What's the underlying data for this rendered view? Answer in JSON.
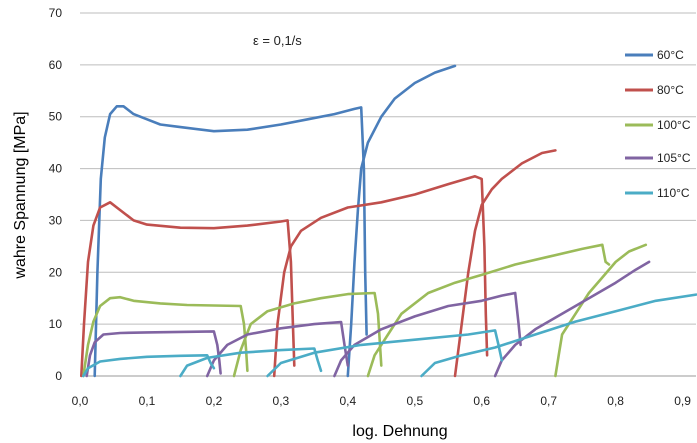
{
  "chart_data": {
    "type": "line",
    "annotation": "ε = 0,1/s",
    "xlabel": "log. Dehnung",
    "ylabel": "wahre Spannung [MPa]",
    "xlim": [
      0,
      0.92
    ],
    "ylim": [
      0,
      70
    ],
    "x_ticks": [
      "0,0",
      "0,1",
      "0,2",
      "0,3",
      "0,4",
      "0,5",
      "0,6",
      "0,7",
      "0,8",
      "0,9"
    ],
    "y_ticks": [
      "0",
      "10",
      "20",
      "30",
      "40",
      "50",
      "60",
      "70"
    ],
    "grid": "horizontal",
    "legend_position": "right",
    "series": [
      {
        "name": "60°C",
        "color": "#4a7ebb",
        "segments": [
          [
            [
              0.022,
              0
            ],
            [
              0.026,
              20
            ],
            [
              0.031,
              38
            ],
            [
              0.037,
              46
            ],
            [
              0.045,
              50.5
            ],
            [
              0.055,
              52
            ],
            [
              0.065,
              52
            ],
            [
              0.08,
              50.5
            ],
            [
              0.1,
              49.5
            ],
            [
              0.12,
              48.5
            ],
            [
              0.15,
              48
            ],
            [
              0.2,
              47.2
            ],
            [
              0.25,
              47.5
            ],
            [
              0.3,
              48.5
            ],
            [
              0.34,
              49.5
            ],
            [
              0.38,
              50.5
            ],
            [
              0.41,
              51.5
            ],
            [
              0.42,
              51.8
            ],
            [
              0.424,
              40
            ],
            [
              0.426,
              20
            ],
            [
              0.428,
              8
            ]
          ],
          [
            [
              0.4,
              0
            ],
            [
              0.405,
              10
            ],
            [
              0.41,
              22
            ],
            [
              0.415,
              32
            ],
            [
              0.42,
              40
            ],
            [
              0.43,
              45
            ],
            [
              0.45,
              50
            ],
            [
              0.47,
              53.5
            ],
            [
              0.5,
              56.5
            ],
            [
              0.53,
              58.5
            ],
            [
              0.56,
              59.8
            ]
          ]
        ]
      },
      {
        "name": "80°C",
        "color": "#c0504d",
        "segments": [
          [
            [
              0.002,
              0
            ],
            [
              0.006,
              10
            ],
            [
              0.012,
              22
            ],
            [
              0.02,
              29
            ],
            [
              0.03,
              32.5
            ],
            [
              0.045,
              33.5
            ],
            [
              0.06,
              32
            ],
            [
              0.08,
              30
            ],
            [
              0.1,
              29.2
            ],
            [
              0.15,
              28.6
            ],
            [
              0.2,
              28.5
            ],
            [
              0.25,
              29
            ],
            [
              0.3,
              29.8
            ],
            [
              0.31,
              30
            ],
            [
              0.315,
              22
            ],
            [
              0.318,
              10
            ],
            [
              0.32,
              2
            ]
          ],
          [
            [
              0.29,
              0
            ],
            [
              0.295,
              10
            ],
            [
              0.305,
              20
            ],
            [
              0.315,
              25
            ],
            [
              0.33,
              28
            ],
            [
              0.36,
              30.5
            ],
            [
              0.4,
              32.5
            ],
            [
              0.45,
              33.5
            ],
            [
              0.5,
              35
            ],
            [
              0.55,
              37
            ],
            [
              0.59,
              38.5
            ],
            [
              0.6,
              38
            ],
            [
              0.604,
              25
            ],
            [
              0.606,
              12
            ],
            [
              0.608,
              4
            ]
          ],
          [
            [
              0.56,
              0
            ],
            [
              0.57,
              10
            ],
            [
              0.58,
              20
            ],
            [
              0.59,
              28
            ],
            [
              0.6,
              33
            ],
            [
              0.615,
              36
            ],
            [
              0.63,
              38
            ],
            [
              0.66,
              41
            ],
            [
              0.69,
              43
            ],
            [
              0.71,
              43.5
            ]
          ]
        ]
      },
      {
        "name": "100°C",
        "color": "#9bbb59",
        "segments": [
          [
            [
              0.005,
              0
            ],
            [
              0.012,
              6
            ],
            [
              0.02,
              10.5
            ],
            [
              0.03,
              13.5
            ],
            [
              0.045,
              15
            ],
            [
              0.06,
              15.2
            ],
            [
              0.08,
              14.5
            ],
            [
              0.12,
              14
            ],
            [
              0.16,
              13.7
            ],
            [
              0.2,
              13.6
            ],
            [
              0.24,
              13.5
            ],
            [
              0.245,
              10
            ],
            [
              0.248,
              5
            ],
            [
              0.25,
              1
            ]
          ],
          [
            [
              0.23,
              0
            ],
            [
              0.24,
              5
            ],
            [
              0.255,
              10
            ],
            [
              0.28,
              12.5
            ],
            [
              0.32,
              14
            ],
            [
              0.36,
              15
            ],
            [
              0.4,
              15.8
            ],
            [
              0.44,
              16
            ],
            [
              0.445,
              12
            ],
            [
              0.448,
              6
            ],
            [
              0.45,
              2
            ]
          ],
          [
            [
              0.43,
              0
            ],
            [
              0.44,
              4
            ],
            [
              0.46,
              8
            ],
            [
              0.48,
              12
            ],
            [
              0.52,
              16
            ],
            [
              0.56,
              18
            ],
            [
              0.6,
              19.5
            ],
            [
              0.65,
              21.5
            ],
            [
              0.7,
              23
            ],
            [
              0.75,
              24.5
            ],
            [
              0.78,
              25.3
            ],
            [
              0.785,
              22
            ],
            [
              0.79,
              21.5
            ]
          ],
          [
            [
              0.71,
              0
            ],
            [
              0.715,
              4
            ],
            [
              0.72,
              8
            ],
            [
              0.74,
              12
            ],
            [
              0.76,
              16
            ],
            [
              0.78,
              19
            ],
            [
              0.8,
              22
            ],
            [
              0.82,
              24
            ],
            [
              0.845,
              25.3
            ]
          ]
        ]
      },
      {
        "name": "105°C",
        "color": "#8064a2",
        "segments": [
          [
            [
              0.01,
              0
            ],
            [
              0.015,
              4
            ],
            [
              0.022,
              6.5
            ],
            [
              0.035,
              8
            ],
            [
              0.06,
              8.3
            ],
            [
              0.1,
              8.4
            ],
            [
              0.15,
              8.5
            ],
            [
              0.2,
              8.6
            ],
            [
              0.205,
              6
            ],
            [
              0.208,
              3
            ],
            [
              0.21,
              0.5
            ]
          ],
          [
            [
              0.19,
              0
            ],
            [
              0.2,
              3
            ],
            [
              0.22,
              6
            ],
            [
              0.25,
              8
            ],
            [
              0.3,
              9.2
            ],
            [
              0.35,
              10
            ],
            [
              0.39,
              10.4
            ],
            [
              0.395,
              6
            ],
            [
              0.4,
              2
            ]
          ],
          [
            [
              0.38,
              0
            ],
            [
              0.39,
              3
            ],
            [
              0.41,
              6
            ],
            [
              0.45,
              9
            ],
            [
              0.5,
              11.5
            ],
            [
              0.55,
              13.5
            ],
            [
              0.6,
              14.5
            ],
            [
              0.63,
              15.5
            ],
            [
              0.65,
              16
            ],
            [
              0.655,
              10
            ],
            [
              0.658,
              6
            ]
          ],
          [
            [
              0.62,
              0
            ],
            [
              0.63,
              3
            ],
            [
              0.65,
              6
            ],
            [
              0.68,
              9
            ],
            [
              0.72,
              12
            ],
            [
              0.76,
              15
            ],
            [
              0.8,
              18
            ],
            [
              0.83,
              20.5
            ],
            [
              0.85,
              22
            ]
          ]
        ]
      },
      {
        "name": "110°C",
        "color": "#4bacc6",
        "segments": [
          [
            [
              0.005,
              0
            ],
            [
              0.012,
              1.5
            ],
            [
              0.03,
              2.8
            ],
            [
              0.06,
              3.3
            ],
            [
              0.1,
              3.7
            ],
            [
              0.15,
              3.9
            ],
            [
              0.19,
              4
            ],
            [
              0.195,
              2.5
            ],
            [
              0.2,
              1.5
            ]
          ],
          [
            [
              0.15,
              0
            ],
            [
              0.16,
              2
            ],
            [
              0.19,
              3.5
            ],
            [
              0.24,
              4.5
            ],
            [
              0.3,
              5
            ],
            [
              0.35,
              5.3
            ],
            [
              0.355,
              3
            ],
            [
              0.36,
              1
            ]
          ],
          [
            [
              0.28,
              0
            ],
            [
              0.3,
              2.5
            ],
            [
              0.35,
              4.5
            ],
            [
              0.42,
              6
            ],
            [
              0.5,
              7
            ],
            [
              0.58,
              8
            ],
            [
              0.62,
              8.8
            ],
            [
              0.625,
              6
            ],
            [
              0.63,
              3
            ]
          ],
          [
            [
              0.51,
              0
            ],
            [
              0.53,
              2.5
            ],
            [
              0.57,
              4
            ],
            [
              0.62,
              5.5
            ],
            [
              0.68,
              8
            ],
            [
              0.74,
              10.5
            ],
            [
              0.8,
              12.5
            ],
            [
              0.86,
              14.5
            ],
            [
              0.92,
              15.7
            ]
          ]
        ]
      }
    ]
  }
}
